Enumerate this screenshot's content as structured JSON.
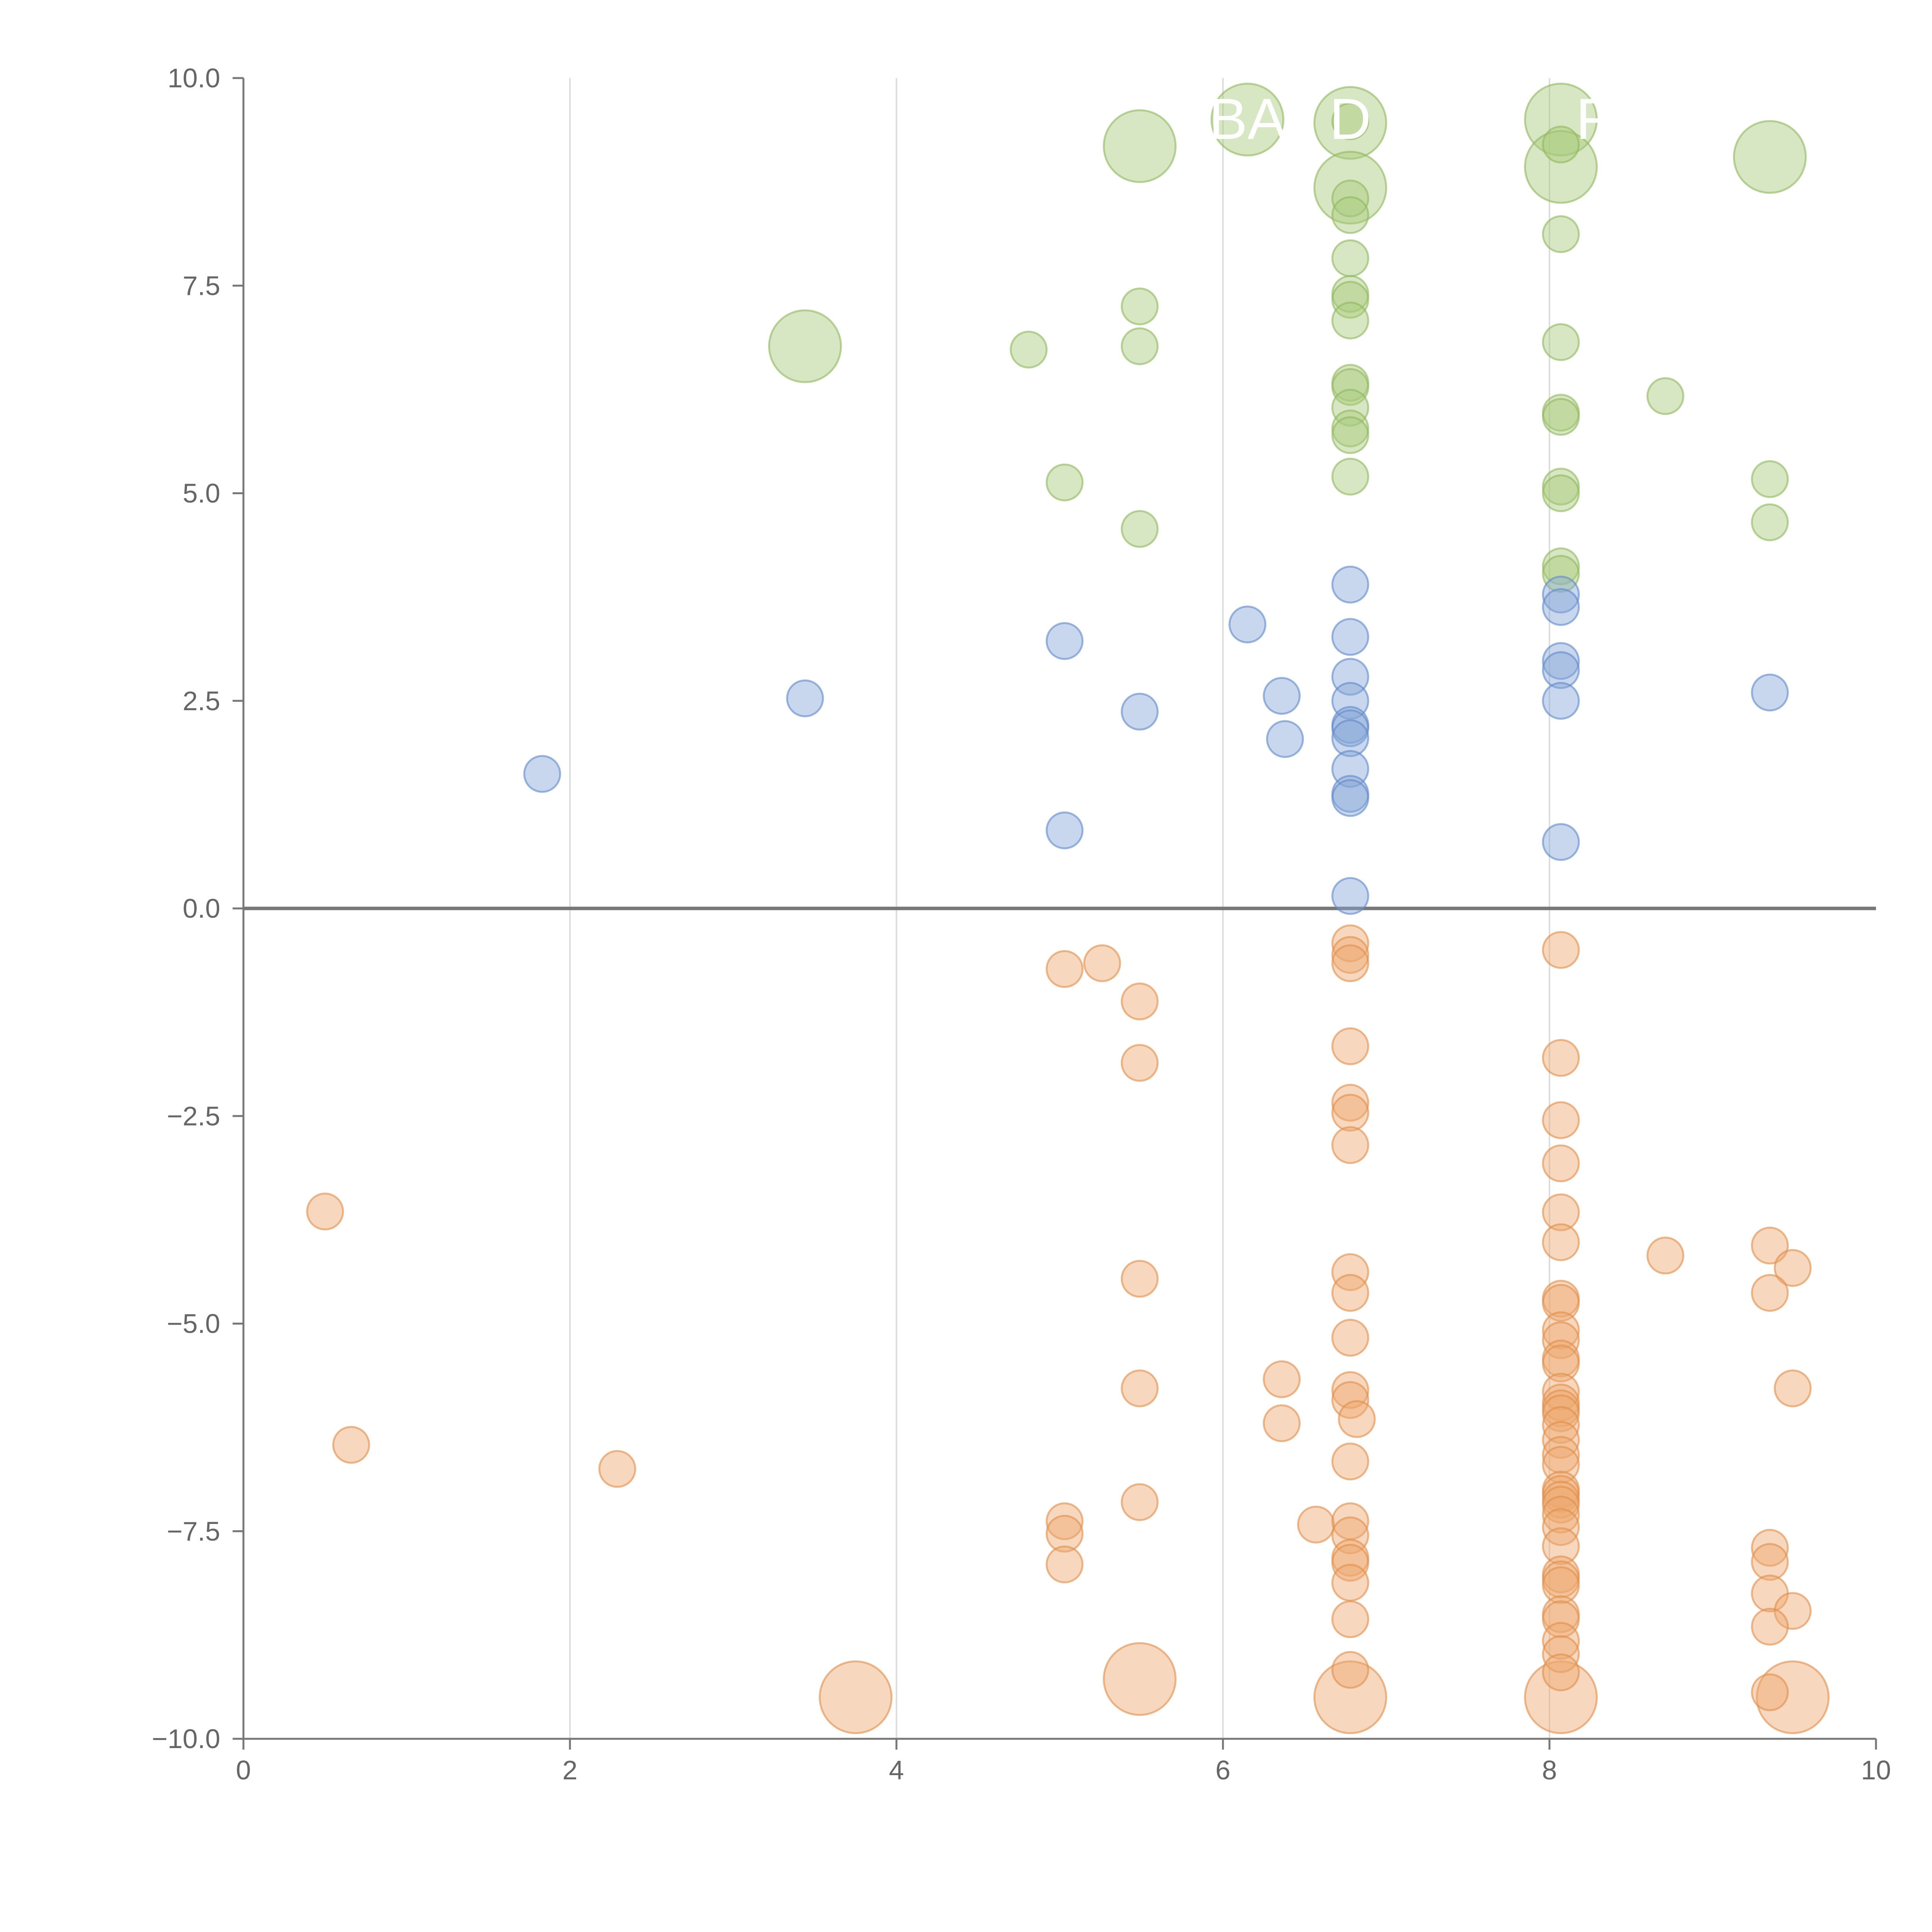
{
  "chart_data": {
    "type": "scatter",
    "title": "",
    "xlabel": "",
    "ylabel": "",
    "xlim": [
      0,
      10
    ],
    "ylim": [
      -10,
      10
    ],
    "x_ticks": [
      0,
      2,
      4,
      6,
      8,
      10
    ],
    "x_tick_labels": [
      "0",
      "2",
      "4",
      "6",
      "8",
      "10"
    ],
    "y_ticks": [
      10,
      7.5,
      5,
      2.5,
      0,
      -2.5,
      -5,
      -7.5,
      -10
    ],
    "y_tick_labels": [
      "10.0",
      "7.5",
      "5.0",
      "2.5",
      "0.0",
      "−2.5",
      "−5.0",
      "−7.5",
      "−10.0"
    ],
    "vertical_gridlines_at": [
      2,
      4,
      6,
      8
    ],
    "zero_line": 0,
    "colors": {
      "axis": "#777777",
      "tick_text": "#666666",
      "grid": "#dddddd",
      "zero_line": "#777777"
    },
    "size_units": {
      "small": 0.11,
      "large": 0.22
    },
    "series": [
      {
        "name": "green",
        "fill": "#a9c97a",
        "stroke": "#8fb85e",
        "points": [
          [
            5.49,
            9.18,
            0.22
          ],
          [
            6.15,
            9.5,
            0.22
          ],
          [
            6.78,
            9.46,
            0.22
          ],
          [
            6.78,
            8.68,
            0.22
          ],
          [
            8.07,
            9.5,
            0.22
          ],
          [
            8.07,
            8.93,
            0.22
          ],
          [
            9.35,
            9.05,
            0.22
          ],
          [
            3.44,
            6.77,
            0.22
          ],
          [
            6.78,
            9.48,
            0.11
          ],
          [
            6.78,
            8.55,
            0.11
          ],
          [
            6.78,
            8.35,
            0.11
          ],
          [
            6.78,
            7.83,
            0.11
          ],
          [
            6.78,
            7.4,
            0.11
          ],
          [
            6.78,
            7.33,
            0.11
          ],
          [
            6.78,
            7.08,
            0.11
          ],
          [
            6.78,
            6.33,
            0.11
          ],
          [
            6.78,
            6.28,
            0.11
          ],
          [
            6.78,
            6.03,
            0.11
          ],
          [
            6.78,
            5.78,
            0.11
          ],
          [
            6.78,
            5.7,
            0.11
          ],
          [
            6.78,
            5.2,
            0.11
          ],
          [
            8.07,
            9.2,
            0.11
          ],
          [
            8.07,
            8.12,
            0.11
          ],
          [
            8.07,
            6.82,
            0.11
          ],
          [
            8.07,
            5.97,
            0.11
          ],
          [
            8.07,
            5.92,
            0.11
          ],
          [
            8.07,
            5.08,
            0.11
          ],
          [
            8.07,
            5.0,
            0.11
          ],
          [
            8.07,
            4.12,
            0.11
          ],
          [
            8.07,
            4.03,
            0.11
          ],
          [
            5.49,
            7.25,
            0.11
          ],
          [
            5.49,
            6.77,
            0.11
          ],
          [
            4.81,
            6.73,
            0.11
          ],
          [
            5.03,
            5.13,
            0.11
          ],
          [
            5.49,
            4.57,
            0.11
          ],
          [
            8.71,
            6.17,
            0.11
          ],
          [
            9.35,
            5.17,
            0.11
          ],
          [
            9.35,
            4.65,
            0.11
          ]
        ]
      },
      {
        "name": "blue",
        "fill": "#86a6d6",
        "stroke": "#5f89c8",
        "points": [
          [
            1.83,
            1.62,
            0.11
          ],
          [
            3.44,
            2.53,
            0.11
          ],
          [
            5.03,
            3.22,
            0.11
          ],
          [
            5.03,
            0.94,
            0.11
          ],
          [
            5.49,
            2.37,
            0.11
          ],
          [
            6.15,
            3.42,
            0.11
          ],
          [
            6.36,
            2.56,
            0.11
          ],
          [
            6.38,
            2.04,
            0.11
          ],
          [
            6.78,
            3.9,
            0.11
          ],
          [
            6.78,
            3.27,
            0.11
          ],
          [
            6.78,
            2.79,
            0.11
          ],
          [
            6.78,
            2.5,
            0.11
          ],
          [
            6.78,
            2.21,
            0.11
          ],
          [
            6.78,
            2.17,
            0.11
          ],
          [
            6.78,
            2.05,
            0.11
          ],
          [
            6.78,
            1.68,
            0.11
          ],
          [
            6.78,
            1.38,
            0.11
          ],
          [
            6.78,
            1.33,
            0.11
          ],
          [
            6.78,
            0.15,
            0.11
          ],
          [
            8.07,
            3.78,
            0.11
          ],
          [
            8.07,
            3.63,
            0.11
          ],
          [
            8.07,
            2.98,
            0.11
          ],
          [
            8.07,
            2.87,
            0.11
          ],
          [
            8.07,
            2.5,
            0.11
          ],
          [
            8.07,
            0.8,
            0.11
          ],
          [
            9.35,
            2.6,
            0.11
          ]
        ]
      },
      {
        "name": "orange",
        "fill": "#eda86e",
        "stroke": "#e08e4a",
        "points": [
          [
            3.75,
            -9.5,
            0.22
          ],
          [
            5.49,
            -9.28,
            0.22
          ],
          [
            6.78,
            -9.5,
            0.22
          ],
          [
            8.07,
            -9.5,
            0.22
          ],
          [
            9.49,
            -9.5,
            0.22
          ],
          [
            0.5,
            -3.65,
            0.11
          ],
          [
            0.66,
            -6.46,
            0.11
          ],
          [
            2.29,
            -6.75,
            0.11
          ],
          [
            5.03,
            -0.73,
            0.11
          ],
          [
            5.26,
            -0.66,
            0.11
          ],
          [
            5.49,
            -1.12,
            0.11
          ],
          [
            5.49,
            -1.86,
            0.11
          ],
          [
            5.49,
            -4.46,
            0.11
          ],
          [
            5.49,
            -5.78,
            0.11
          ],
          [
            5.49,
            -7.15,
            0.11
          ],
          [
            5.03,
            -7.38,
            0.11
          ],
          [
            5.03,
            -7.53,
            0.11
          ],
          [
            5.03,
            -7.9,
            0.11
          ],
          [
            6.36,
            -5.67,
            0.11
          ],
          [
            6.36,
            -6.2,
            0.11
          ],
          [
            6.57,
            -7.42,
            0.11
          ],
          [
            6.78,
            -0.42,
            0.11
          ],
          [
            6.78,
            -0.56,
            0.11
          ],
          [
            6.78,
            -0.66,
            0.11
          ],
          [
            6.78,
            -1.66,
            0.11
          ],
          [
            6.78,
            -2.34,
            0.11
          ],
          [
            6.78,
            -2.46,
            0.11
          ],
          [
            6.78,
            -2.85,
            0.11
          ],
          [
            6.78,
            -4.38,
            0.11
          ],
          [
            6.78,
            -4.63,
            0.11
          ],
          [
            6.78,
            -5.17,
            0.11
          ],
          [
            6.78,
            -5.8,
            0.11
          ],
          [
            6.78,
            -5.92,
            0.11
          ],
          [
            6.82,
            -6.15,
            0.11
          ],
          [
            6.78,
            -6.66,
            0.11
          ],
          [
            6.78,
            -7.38,
            0.11
          ],
          [
            6.78,
            -7.55,
            0.11
          ],
          [
            6.78,
            -7.82,
            0.11
          ],
          [
            6.78,
            -7.88,
            0.11
          ],
          [
            6.78,
            -8.12,
            0.11
          ],
          [
            6.78,
            -8.56,
            0.11
          ],
          [
            6.78,
            -9.17,
            0.11
          ],
          [
            8.07,
            -0.5,
            0.11
          ],
          [
            8.07,
            -1.8,
            0.11
          ],
          [
            8.07,
            -2.55,
            0.11
          ],
          [
            8.07,
            -3.07,
            0.11
          ],
          [
            8.07,
            -3.66,
            0.11
          ],
          [
            8.07,
            -4.02,
            0.11
          ],
          [
            8.07,
            -4.7,
            0.11
          ],
          [
            8.07,
            -4.75,
            0.11
          ],
          [
            8.07,
            -5.08,
            0.11
          ],
          [
            8.07,
            -5.2,
            0.11
          ],
          [
            8.07,
            -5.42,
            0.11
          ],
          [
            8.07,
            -5.48,
            0.11
          ],
          [
            8.07,
            -5.82,
            0.11
          ],
          [
            8.07,
            -5.95,
            0.11
          ],
          [
            8.07,
            -6.02,
            0.11
          ],
          [
            8.07,
            -6.08,
            0.11
          ],
          [
            8.07,
            -6.22,
            0.11
          ],
          [
            8.07,
            -6.4,
            0.11
          ],
          [
            8.07,
            -6.58,
            0.11
          ],
          [
            8.07,
            -6.7,
            0.11
          ],
          [
            8.07,
            -7.0,
            0.11
          ],
          [
            8.07,
            -7.05,
            0.11
          ],
          [
            8.07,
            -7.12,
            0.11
          ],
          [
            8.07,
            -7.18,
            0.11
          ],
          [
            8.07,
            -7.3,
            0.11
          ],
          [
            8.07,
            -7.45,
            0.11
          ],
          [
            8.07,
            -7.68,
            0.11
          ],
          [
            8.07,
            -8.02,
            0.11
          ],
          [
            8.07,
            -8.08,
            0.11
          ],
          [
            8.07,
            -8.15,
            0.11
          ],
          [
            8.07,
            -8.5,
            0.11
          ],
          [
            8.07,
            -8.56,
            0.11
          ],
          [
            8.07,
            -8.82,
            0.11
          ],
          [
            8.07,
            -8.98,
            0.11
          ],
          [
            8.07,
            -9.2,
            0.11
          ],
          [
            8.71,
            -4.18,
            0.11
          ],
          [
            9.35,
            -4.06,
            0.11
          ],
          [
            9.49,
            -4.33,
            0.11
          ],
          [
            9.35,
            -4.63,
            0.11
          ],
          [
            9.49,
            -5.78,
            0.11
          ],
          [
            9.35,
            -7.7,
            0.11
          ],
          [
            9.35,
            -7.87,
            0.11
          ],
          [
            9.35,
            -8.25,
            0.11
          ],
          [
            9.49,
            -8.46,
            0.11
          ],
          [
            9.35,
            -8.65,
            0.11
          ],
          [
            9.35,
            -9.44,
            0.11
          ]
        ]
      }
    ],
    "annotations": [
      {
        "text": "BA",
        "x": 6.15,
        "y": 9.5
      },
      {
        "text": "D",
        "x": 6.78,
        "y": 9.5
      },
      {
        "text": "F",
        "x": 8.27,
        "y": 9.5
      }
    ]
  }
}
